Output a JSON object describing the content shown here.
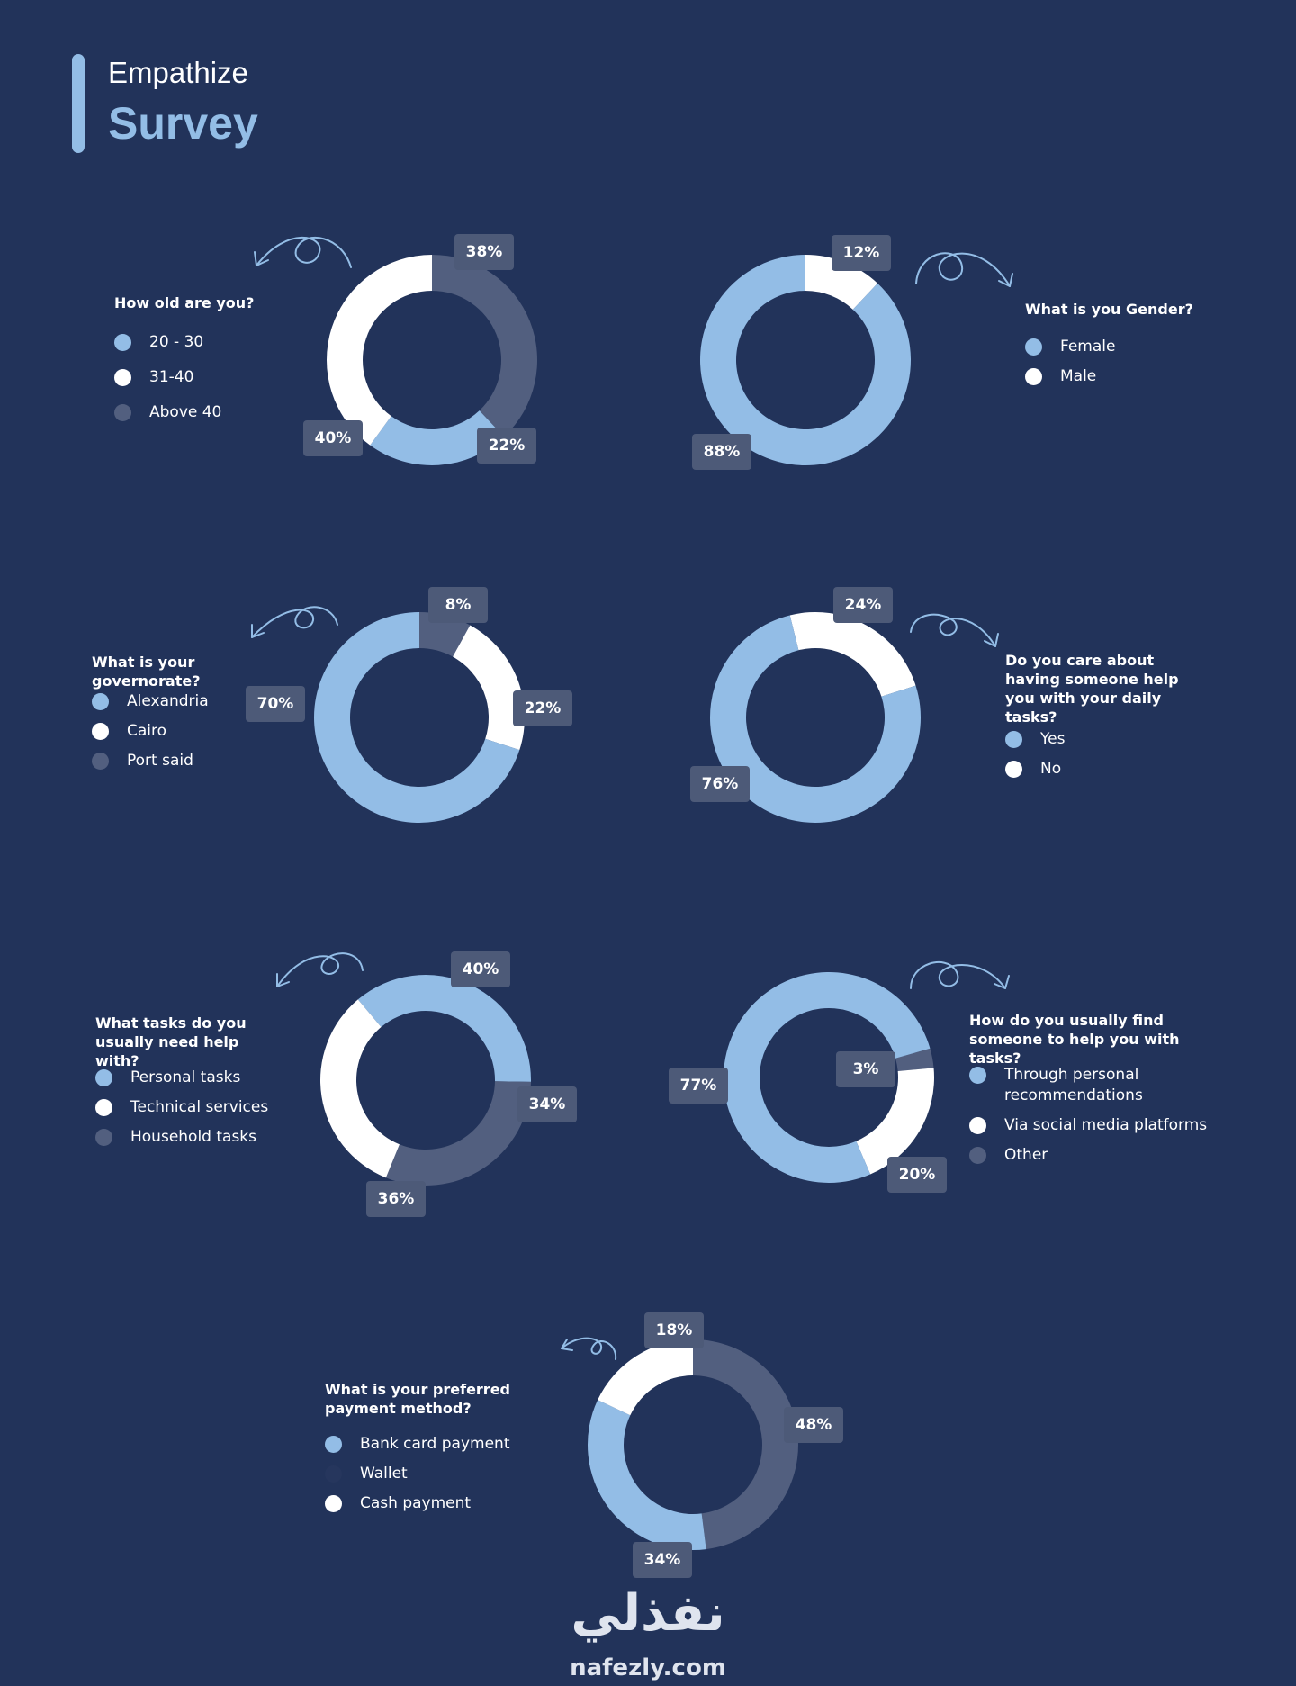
{
  "header": {
    "subtitle": "Empathize",
    "title": "Survey"
  },
  "colors": {
    "background": "#22335a",
    "light_blue": "#93bde6",
    "white": "#ffffff",
    "slate": "#525f7f",
    "label_box": "#4d5a78"
  },
  "chart_data": [
    {
      "type": "pie",
      "title": "How old are you?",
      "categories": [
        "20 - 30",
        "31-40",
        "Above 40"
      ],
      "values": [
        22,
        40,
        38
      ],
      "labels": [
        "22%",
        "40%",
        "38%"
      ],
      "colors": [
        "#93bde6",
        "#ffffff",
        "#525f7f"
      ]
    },
    {
      "type": "pie",
      "title": "What is you Gender?",
      "categories": [
        "Female",
        "Male"
      ],
      "values": [
        88,
        12
      ],
      "labels": [
        "88%",
        "12%"
      ],
      "colors": [
        "#93bde6",
        "#ffffff"
      ]
    },
    {
      "type": "pie",
      "title": "What is your governorate?",
      "categories": [
        "Alexandria",
        "Cairo",
        "Port said"
      ],
      "values": [
        70,
        22,
        8
      ],
      "labels": [
        "70%",
        "22%",
        "8%"
      ],
      "colors": [
        "#93bde6",
        "#ffffff",
        "#525f7f"
      ]
    },
    {
      "type": "pie",
      "title": "Do you care about having someone help you with your daily tasks?",
      "categories": [
        "Yes",
        "No"
      ],
      "values": [
        76,
        24
      ],
      "labels": [
        "76%",
        "24%"
      ],
      "colors": [
        "#93bde6",
        "#ffffff"
      ]
    },
    {
      "type": "pie",
      "title": "What tasks do you usually need help with?",
      "categories": [
        "Personal tasks",
        "Technical services",
        "Household tasks"
      ],
      "values": [
        40,
        36,
        34
      ],
      "labels": [
        "40%",
        "36%",
        "34%"
      ],
      "colors": [
        "#93bde6",
        "#ffffff",
        "#525f7f"
      ]
    },
    {
      "type": "pie",
      "title": "How do you usually find someone to help you with tasks?",
      "categories": [
        "Through personal recommendations",
        "Via social media platforms",
        "Other"
      ],
      "values": [
        77,
        20,
        3
      ],
      "labels": [
        "77%",
        "20%",
        "3%"
      ],
      "colors": [
        "#93bde6",
        "#ffffff",
        "#525f7f"
      ]
    },
    {
      "type": "pie",
      "title": "What is your preferred payment method?",
      "categories": [
        "Bank card payment",
        "Wallet",
        "Cash payment"
      ],
      "values": [
        34,
        48,
        18
      ],
      "labels": [
        "34%",
        "48%",
        "18%"
      ],
      "colors": [
        "#93bde6",
        "#525f7f",
        "#ffffff"
      ],
      "legend_colors": [
        "#93bde6",
        "#26365d",
        "#ffffff"
      ]
    }
  ],
  "footer": {
    "logo_arabic": "نفذلي",
    "logo_latin": "nafezly.com"
  }
}
